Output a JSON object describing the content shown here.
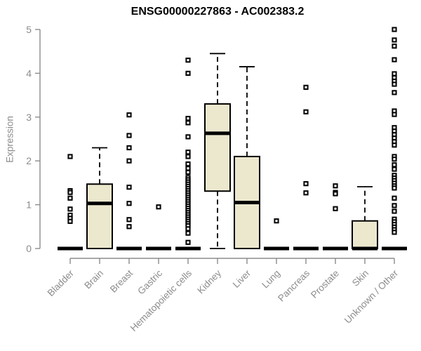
{
  "chart_data": {
    "type": "boxplot",
    "title": "ENSG00000227863 - AC002383.2",
    "ylabel": "Expression",
    "xlabel": "",
    "ylim": [
      0,
      5
    ],
    "yticks": [
      0,
      1,
      2,
      3,
      4,
      5
    ],
    "grid": false,
    "legend": false,
    "categories": [
      "Bladder",
      "Brain",
      "Breast",
      "Gastric",
      "Hematopoietic cells",
      "Kidney",
      "Liver",
      "Lung",
      "Pancreas",
      "Prostate",
      "Skin",
      "Unknown / Other"
    ],
    "series": [
      {
        "name": "Bladder",
        "q1": 0,
        "median": 0,
        "q3": 0,
        "whisker_low": 0,
        "whisker_high": 0,
        "outliers": [
          2.1,
          1.32,
          1.28,
          1.15,
          0.9,
          0.76,
          0.69,
          0.62
        ]
      },
      {
        "name": "Brain",
        "q1": 0,
        "median": 1.03,
        "q3": 1.47,
        "whisker_low": 0,
        "whisker_high": 2.3,
        "outliers": []
      },
      {
        "name": "Breast",
        "q1": 0,
        "median": 0,
        "q3": 0,
        "whisker_low": 0,
        "whisker_high": 0,
        "outliers": [
          3.05,
          2.58,
          2.3,
          2.0,
          1.4,
          1.03,
          0.66,
          0.5
        ]
      },
      {
        "name": "Gastric",
        "q1": 0,
        "median": 0,
        "q3": 0,
        "whisker_low": 0,
        "whisker_high": 0,
        "outliers": [
          0.95
        ]
      },
      {
        "name": "Hematopoietic cells",
        "q1": 0,
        "median": 0,
        "q3": 0,
        "whisker_low": 0,
        "whisker_high": 0,
        "outliers": [
          4.3,
          4.0,
          2.97,
          2.87,
          2.55,
          2.2,
          2.1,
          1.93,
          1.83,
          1.74,
          1.62,
          1.57,
          1.52,
          1.47,
          1.42,
          1.37,
          1.32,
          1.27,
          1.22,
          1.17,
          1.12,
          1.07,
          1.02,
          0.97,
          0.92,
          0.87,
          0.82,
          0.77,
          0.72,
          0.67,
          0.62,
          0.57,
          0.52,
          0.45,
          0.35,
          0.14
        ]
      },
      {
        "name": "Kidney",
        "q1": 1.31,
        "median": 2.63,
        "q3": 3.3,
        "whisker_low": 0,
        "whisker_high": 4.45,
        "outliers": []
      },
      {
        "name": "Liver",
        "q1": 0,
        "median": 1.05,
        "q3": 2.1,
        "whisker_low": 0,
        "whisker_high": 4.15,
        "outliers": []
      },
      {
        "name": "Lung",
        "q1": 0,
        "median": 0,
        "q3": 0,
        "whisker_low": 0,
        "whisker_high": 0,
        "outliers": [
          0.63
        ]
      },
      {
        "name": "Pancreas",
        "q1": 0,
        "median": 0,
        "q3": 0,
        "whisker_low": 0,
        "whisker_high": 0,
        "outliers": [
          3.68,
          3.12,
          1.48,
          1.27
        ]
      },
      {
        "name": "Prostate",
        "q1": 0,
        "median": 0,
        "q3": 0,
        "whisker_low": 0,
        "whisker_high": 0,
        "outliers": [
          1.43,
          1.28,
          1.25,
          0.91
        ]
      },
      {
        "name": "Skin",
        "q1": 0,
        "median": 0,
        "q3": 0.63,
        "whisker_low": 0,
        "whisker_high": 1.41,
        "outliers": []
      },
      {
        "name": "Unknown / Other",
        "q1": 0,
        "median": 0,
        "q3": 0,
        "whisker_low": 0,
        "whisker_high": 0,
        "outliers": [
          5.0,
          4.76,
          4.62,
          4.31,
          3.99,
          3.9,
          3.82,
          3.75,
          3.56,
          3.14,
          3.06,
          2.76,
          2.68,
          2.6,
          2.52,
          2.44,
          2.36,
          2.1,
          2.04,
          1.91,
          1.81,
          1.67,
          1.61,
          1.55,
          1.49,
          1.43,
          1.38,
          1.15,
          0.98,
          0.85,
          0.67,
          0.61,
          0.55,
          0.49,
          0.43,
          0.37
        ]
      }
    ],
    "colors": {
      "box_fill": "#ece8ce",
      "box_border": "#000000",
      "whisker": "#000000",
      "outlier": "#000000",
      "axis": "#8c8c8c",
      "label": "#8c8c8c",
      "title": "#000000",
      "background": "#ffffff"
    }
  }
}
